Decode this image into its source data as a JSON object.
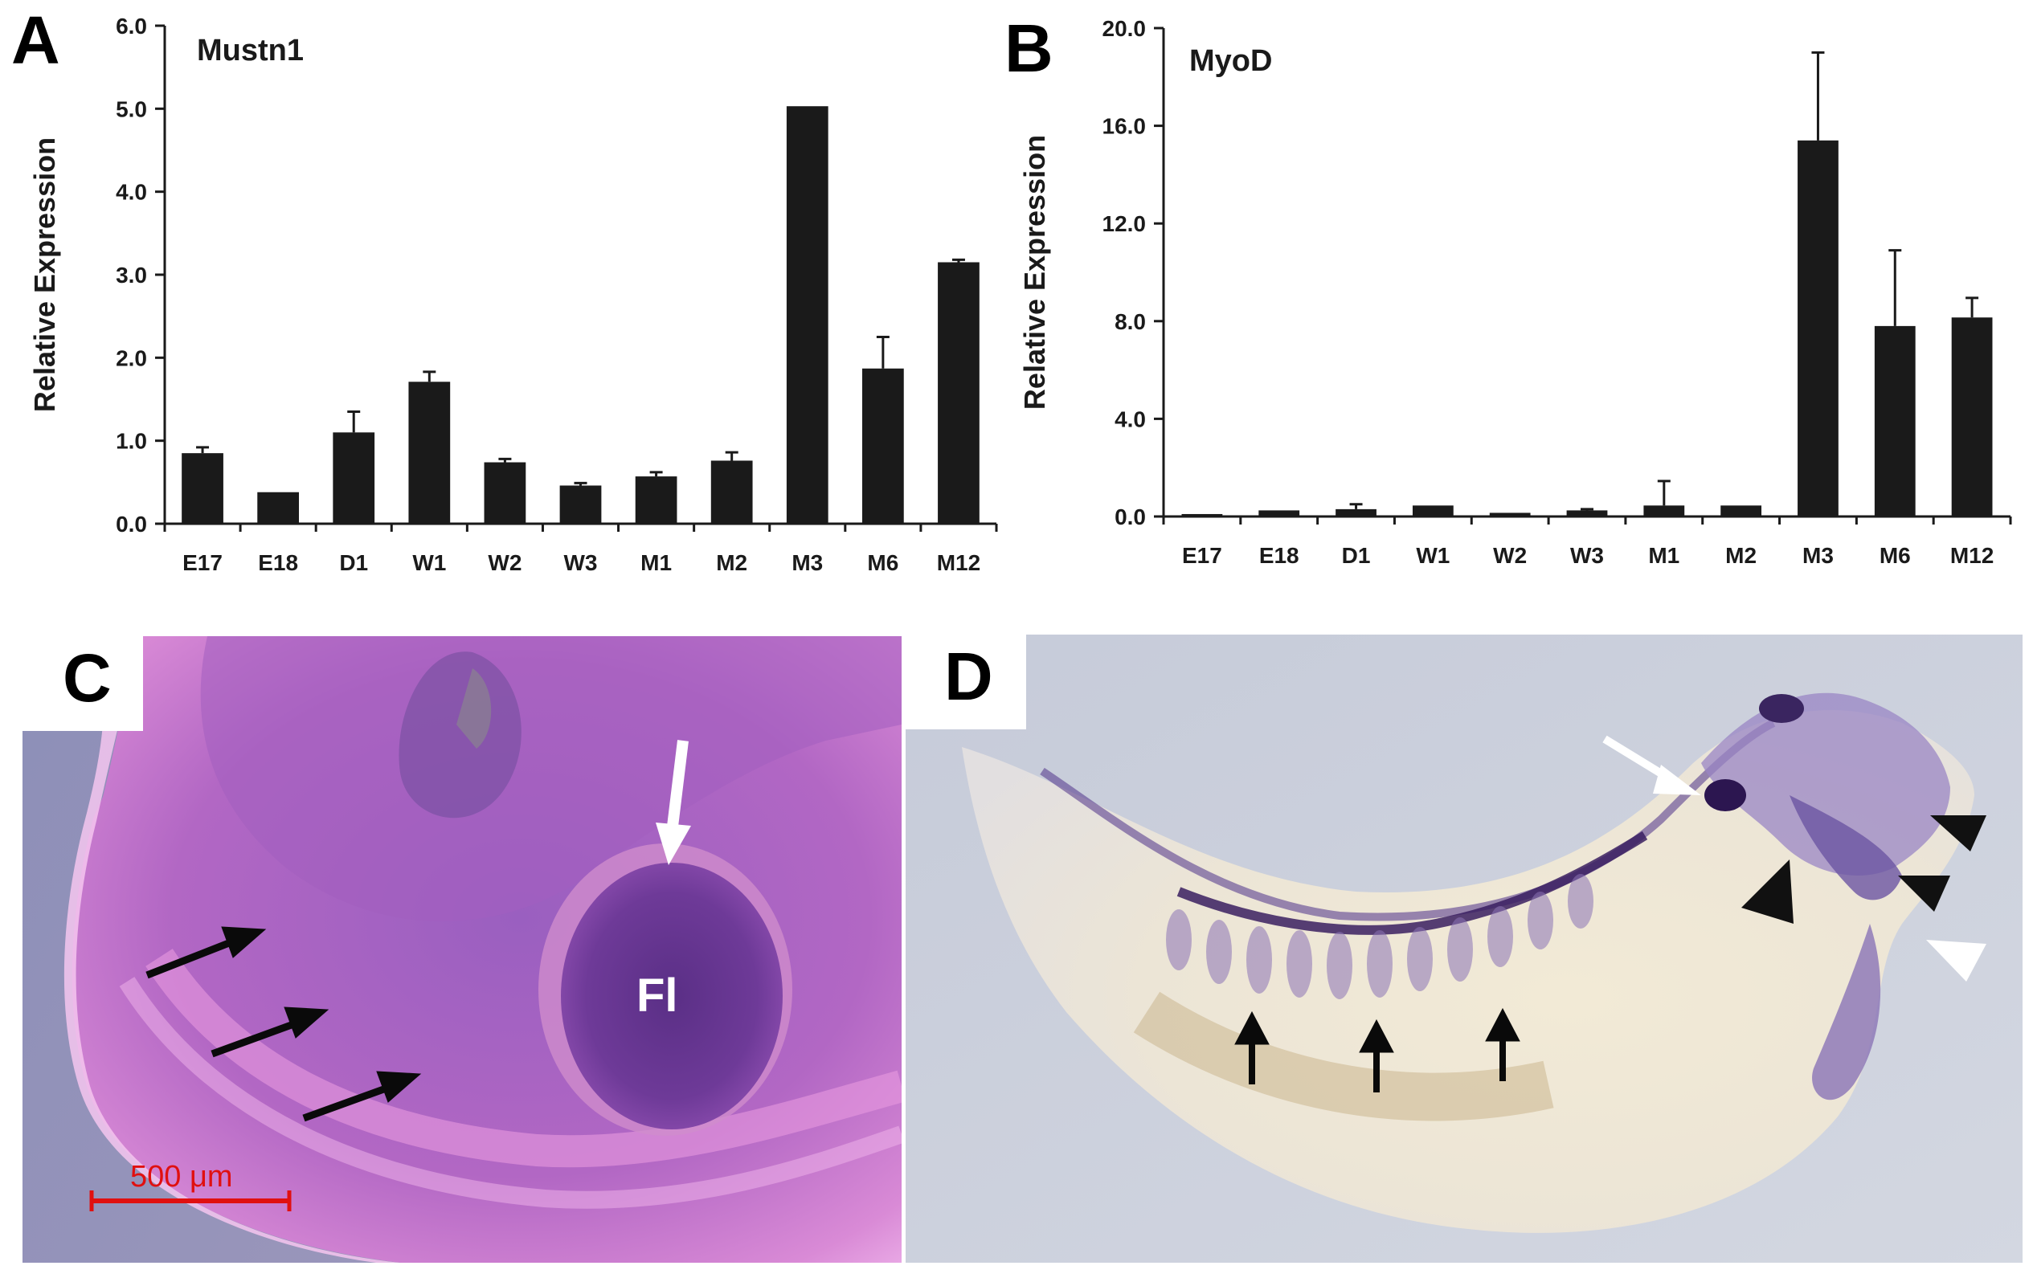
{
  "panels": {
    "a": {
      "letter": "A"
    },
    "b": {
      "letter": "B"
    },
    "c": {
      "letter": "C",
      "scale_bar_label": "500 μm",
      "structure_label": "Fl"
    },
    "d": {
      "letter": "D"
    }
  },
  "colors": {
    "bar": "#1a1a1a",
    "scale_bar": "#e01010",
    "stain_purple": "#5a3f8f",
    "tissue_pink": "#c575c8"
  },
  "chart_data": [
    {
      "type": "bar",
      "title": "Mustn1",
      "xlabel": "",
      "ylabel": "Relative Expression",
      "categories": [
        "E17",
        "E18",
        "D1",
        "W1",
        "W2",
        "W3",
        "M1",
        "M2",
        "M3",
        "M6",
        "M12"
      ],
      "values": [
        0.85,
        0.38,
        1.1,
        1.71,
        0.74,
        0.46,
        0.57,
        0.76,
        5.03,
        1.87,
        3.15
      ],
      "errors": [
        0.07,
        0.0,
        0.25,
        0.12,
        0.04,
        0.03,
        0.05,
        0.1,
        0.0,
        0.38,
        0.03
      ],
      "ylim": [
        0,
        6.0
      ],
      "yticks": [
        "0.0",
        "1.0",
        "2.0",
        "3.0",
        "4.0",
        "5.0",
        "6.0"
      ],
      "grid": false
    },
    {
      "type": "bar",
      "title": "MyoD",
      "xlabel": "",
      "ylabel": "Relative Expression",
      "categories": [
        "E17",
        "E18",
        "D1",
        "W1",
        "W2",
        "W3",
        "M1",
        "M2",
        "M3",
        "M6",
        "M12"
      ],
      "values": [
        0.1,
        0.25,
        0.3,
        0.45,
        0.15,
        0.25,
        0.45,
        0.45,
        15.4,
        7.8,
        8.15
      ],
      "errors": [
        0.0,
        0.0,
        0.2,
        0.0,
        0.0,
        0.05,
        1.0,
        0.0,
        3.6,
        3.1,
        0.8
      ],
      "ylim": [
        0,
        20.0
      ],
      "yticks": [
        "0.0",
        "4.0",
        "8.0",
        "12.0",
        "16.0",
        "20.0"
      ],
      "grid": false
    }
  ]
}
